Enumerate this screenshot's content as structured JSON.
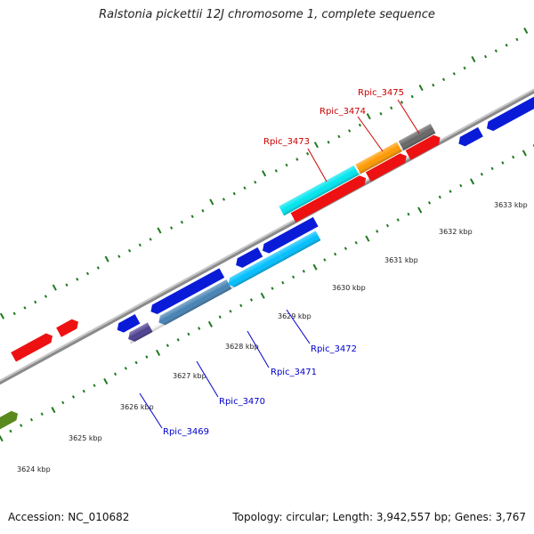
{
  "title": "Ralstonia pickettii 12J chromosome 1, complete sequence",
  "footer": {
    "accession": "Accession: NC_010682",
    "summary": "Topology: circular; Length: 3,942,557 bp; Genes: 3,767"
  },
  "colors": {
    "backbone": "#8a8a8a",
    "tick": "#1e7a1e",
    "label_forward": "#cc0000",
    "label_reverse": "#0000cc"
  },
  "kbp_labels": [
    "3624 kbp",
    "3625 kbp",
    "3626 kbp",
    "3627 kbp",
    "3628 kbp",
    "3629 kbp",
    "3630 kbp",
    "3631 kbp",
    "3632 kbp",
    "3633 kbp"
  ],
  "genes_forward": [
    {
      "label": "Rpic_3473",
      "color": "#00e5ee"
    },
    {
      "label": "Rpic_3474",
      "color": "#ff9900"
    },
    {
      "label": "Rpic_3475",
      "color": "#666666"
    }
  ],
  "genes_reverse": [
    {
      "label": "Rpic_3469",
      "color": "#4b3f8f"
    },
    {
      "label": "Rpic_3470",
      "color": "#4682b4"
    },
    {
      "label": "Rpic_3471",
      "color": "#00bfff"
    },
    {
      "label": "Rpic_3472",
      "color": "#00bfff"
    }
  ]
}
